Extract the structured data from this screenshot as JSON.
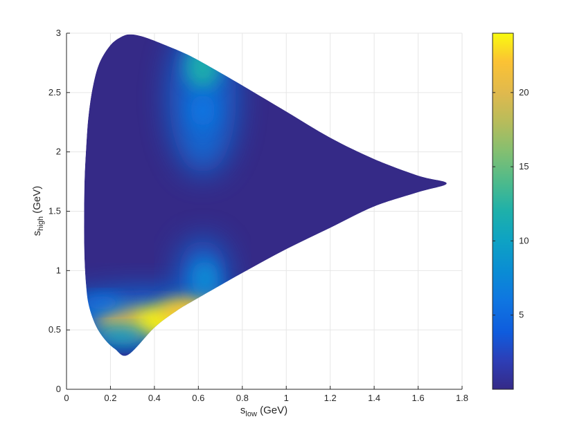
{
  "chart_data": {
    "type": "heatmap",
    "title": "",
    "xlabel": {
      "base": "s",
      "sub": "low",
      "unit": " (GeV)"
    },
    "ylabel": {
      "base": "s",
      "sub": "high",
      "unit": " (GeV)"
    },
    "xlim": [
      0,
      1.8
    ],
    "ylim": [
      0,
      3
    ],
    "x_ticks": [
      0,
      0.2,
      0.4,
      0.6,
      0.8,
      1,
      1.2,
      1.4,
      1.6,
      1.8
    ],
    "x_tick_labels": [
      "0",
      "0.2",
      "0.4",
      "0.6",
      "0.8",
      "1",
      "1.2",
      "1.4",
      "1.6",
      "1.8"
    ],
    "y_ticks": [
      0,
      0.5,
      1,
      1.5,
      2,
      2.5,
      3
    ],
    "y_tick_labels": [
      "0",
      "0.5",
      "1",
      "1.5",
      "2",
      "2.5",
      "3"
    ],
    "grid": true,
    "colormap": "parula",
    "colorbar": {
      "min": 0,
      "max": 24,
      "ticks": [
        5,
        10,
        15,
        20
      ],
      "tick_labels": [
        "5",
        "10",
        "15",
        "20"
      ]
    },
    "colors": {
      "background_low": "#352a87",
      "grid": "#e6e6e6",
      "axis": "#262626"
    },
    "region_boundary": [
      [
        0.08,
        1.43
      ],
      [
        0.082,
        1.75
      ],
      [
        0.09,
        2.05
      ],
      [
        0.1,
        2.3
      ],
      [
        0.12,
        2.55
      ],
      [
        0.15,
        2.75
      ],
      [
        0.2,
        2.9
      ],
      [
        0.25,
        2.97
      ],
      [
        0.29,
        2.99
      ],
      [
        0.35,
        2.97
      ],
      [
        0.45,
        2.9
      ],
      [
        0.55,
        2.82
      ],
      [
        0.65,
        2.72
      ],
      [
        0.8,
        2.56
      ],
      [
        1.0,
        2.34
      ],
      [
        1.2,
        2.12
      ],
      [
        1.4,
        1.94
      ],
      [
        1.6,
        1.8
      ],
      [
        1.73,
        1.735
      ],
      [
        1.6,
        1.66
      ],
      [
        1.4,
        1.54
      ],
      [
        1.2,
        1.36
      ],
      [
        1.0,
        1.18
      ],
      [
        0.8,
        0.98
      ],
      [
        0.6,
        0.77
      ],
      [
        0.5,
        0.66
      ],
      [
        0.4,
        0.52
      ],
      [
        0.28,
        0.29
      ],
      [
        0.22,
        0.34
      ],
      [
        0.17,
        0.43
      ],
      [
        0.13,
        0.55
      ],
      [
        0.1,
        0.72
      ],
      [
        0.088,
        0.9
      ],
      [
        0.082,
        1.1
      ],
      [
        0.08,
        1.3
      ]
    ],
    "hotspots": [
      {
        "s_low": 0.62,
        "s_high": 2.72,
        "value": 12
      },
      {
        "s_low": 0.62,
        "s_high": 2.35,
        "value": 5
      },
      {
        "s_low": 0.3,
        "s_high": 0.57,
        "value": 19
      },
      {
        "s_low": 0.5,
        "s_high": 0.58,
        "value": 23
      },
      {
        "s_low": 0.6,
        "s_high": 0.65,
        "value": 22
      },
      {
        "s_low": 0.63,
        "s_high": 0.93,
        "value": 7
      },
      {
        "s_low": 0.16,
        "s_high": 0.73,
        "value": 5
      },
      {
        "s_low": 0.25,
        "s_high": 0.45,
        "value": 8
      }
    ]
  }
}
